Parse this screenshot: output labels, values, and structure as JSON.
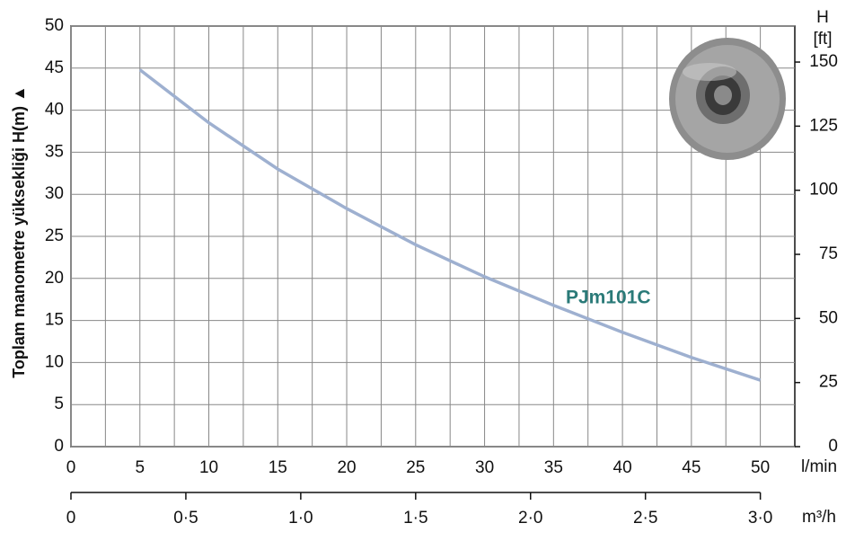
{
  "chart_data": {
    "type": "line",
    "y_label": "Toplam manometre yüksekliği H(m) ▲",
    "x_unit": "l/min",
    "x2_unit": "m³/h",
    "y2_label": "H",
    "y2_unit": "[ft]",
    "x": [
      5,
      10,
      15,
      20,
      25,
      30,
      35,
      40,
      45,
      50
    ],
    "series": [
      {
        "name": "PJm101C",
        "color": "#9eb0d0",
        "label_color": "#2a7a78",
        "values": [
          44.8,
          38.5,
          33.0,
          28.3,
          24.0,
          20.2,
          16.8,
          13.6,
          10.6,
          7.9
        ]
      }
    ],
    "xlim": [
      0,
      52.5
    ],
    "xticks": [
      0,
      5,
      10,
      15,
      20,
      25,
      30,
      35,
      40,
      45,
      50
    ],
    "ylim": [
      0,
      50
    ],
    "yticks": [
      0,
      5,
      10,
      15,
      20,
      25,
      30,
      35,
      40,
      45,
      50
    ],
    "y2lim": [
      0,
      164.04
    ],
    "y2ticks": [
      0,
      25,
      50,
      75,
      100,
      125,
      150
    ],
    "x2lim": [
      0,
      3
    ],
    "x2ticks": [
      0,
      {
        "value": 0.5,
        "label": "0·5"
      },
      {
        "value": 1,
        "label": "1·0"
      },
      {
        "value": 1.5,
        "label": "1·5"
      },
      {
        "value": 2,
        "label": "2·0"
      },
      {
        "value": 2.5,
        "label": "2·5"
      },
      {
        "value": 3,
        "label": "3·0"
      }
    ],
    "grid": true
  }
}
